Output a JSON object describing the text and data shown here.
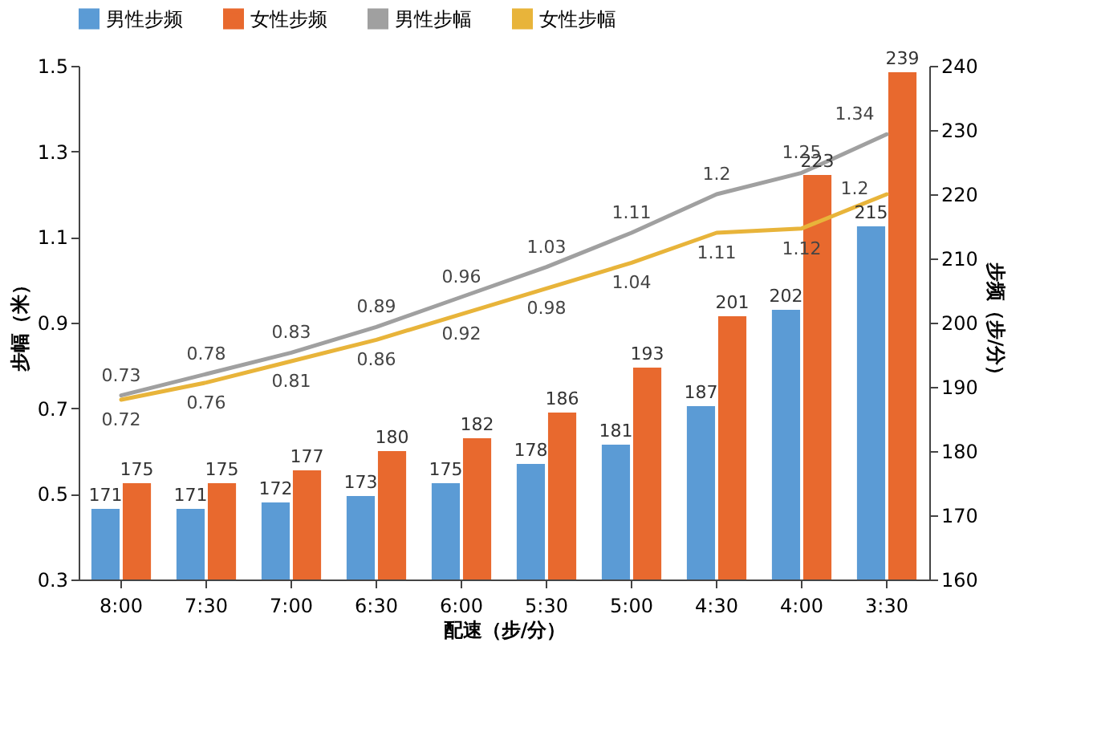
{
  "chart_data": {
    "type": "bar",
    "categories": [
      "8:00",
      "7:30",
      "7:00",
      "6:30",
      "6:00",
      "5:30",
      "5:00",
      "4:30",
      "4:00",
      "3:30"
    ],
    "series": [
      {
        "name": "男性步频",
        "axis": "y2",
        "color": "#5b9bd5",
        "values": [
          171,
          171,
          172,
          173,
          175,
          178,
          181,
          187,
          202,
          215
        ]
      },
      {
        "name": "女性步频",
        "axis": "y2",
        "color": "#e8692e",
        "values": [
          175,
          175,
          177,
          180,
          182,
          186,
          193,
          201,
          223,
          239
        ]
      },
      {
        "name": "男性步幅",
        "type": "line",
        "color": "#a0a0a0",
        "values": [
          0.73,
          0.78,
          0.83,
          0.89,
          0.96,
          1.03,
          1.11,
          1.2,
          1.25,
          1.34
        ]
      },
      {
        "name": "女性步幅",
        "type": "line",
        "color": "#e8b43a",
        "values": [
          0.72,
          0.76,
          0.81,
          0.86,
          0.92,
          0.98,
          1.04,
          1.11,
          1.12,
          1.2
        ]
      }
    ],
    "xlabel": "配速（步/分）",
    "ylabel": "步幅（米）",
    "y2label": "步频（步/分）",
    "ylim": [
      0.3,
      1.5
    ],
    "yticks": [
      0.3,
      0.5,
      0.7,
      0.9,
      1.1,
      1.3,
      1.5
    ],
    "y2lim": [
      160,
      240
    ],
    "y2ticks": [
      160,
      170,
      180,
      190,
      200,
      210,
      220,
      230,
      240
    ],
    "data_labels": true,
    "legend": "top",
    "grid": false,
    "marker": "none",
    "line_style": "solid"
  }
}
